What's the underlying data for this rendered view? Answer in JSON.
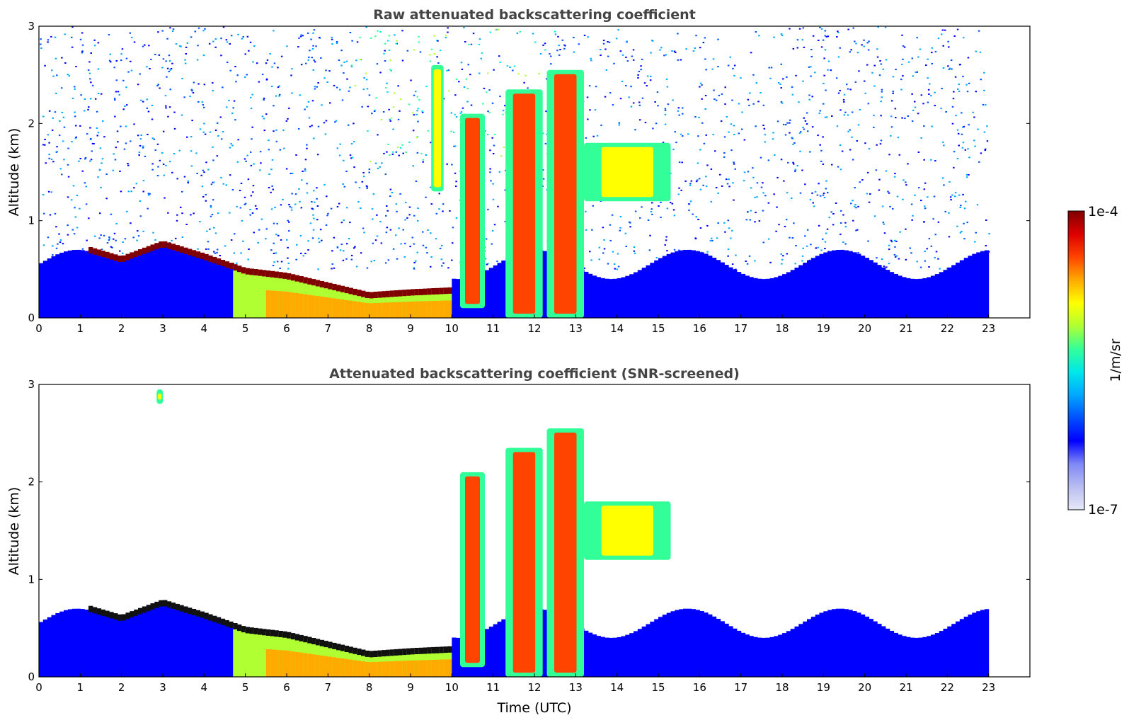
{
  "chart_data": [
    {
      "type": "heatmap",
      "title": "Raw attenuated backscattering coefficient",
      "xlabel": "",
      "ylabel": "Altitude (km)",
      "xlim": [
        0,
        24
      ],
      "ylim": [
        0,
        3
      ],
      "xticks": [
        "0",
        "1",
        "2",
        "3",
        "4",
        "5",
        "6",
        "7",
        "8",
        "9",
        "10",
        "11",
        "12",
        "13",
        "14",
        "15",
        "16",
        "17",
        "18",
        "19",
        "20",
        "21",
        "22",
        "23"
      ],
      "yticks": [
        "0",
        "1",
        "2",
        "3"
      ],
      "data_end_time": 23,
      "layers": [
        {
          "feature": "noise_background",
          "x_range": [
            0,
            23
          ],
          "alt_range": [
            0.5,
            3
          ],
          "level": "low, speckled (blue-cyan; green-yellow near 8-12 UTC)"
        },
        {
          "feature": "boundary_layer",
          "x_range": [
            0,
            23
          ],
          "alt_range": [
            0,
            0.7
          ],
          "level": "low-moderate (blue)"
        },
        {
          "feature": "aerosol_layer_top",
          "x_range": [
            1.2,
            10
          ],
          "alt_top_km": [
            [
              1.2,
              0.72
            ],
            [
              2,
              0.62
            ],
            [
              3,
              0.78
            ],
            [
              4,
              0.65
            ],
            [
              5,
              0.5
            ],
            [
              6,
              0.45
            ],
            [
              7,
              0.35
            ],
            [
              8,
              0.25
            ],
            [
              9,
              0.28
            ],
            [
              10,
              0.3
            ]
          ],
          "level": "high (dark red)"
        },
        {
          "feature": "enhanced_aerosol",
          "x_range": [
            5,
            10
          ],
          "alt_range": [
            0,
            0.5
          ],
          "level": "moderate (yellow-orange)"
        },
        {
          "feature": "cloud_column",
          "x_range": [
            10.2,
            10.8
          ],
          "alt_range": [
            0.1,
            2.1
          ],
          "level": "high"
        },
        {
          "feature": "cloud_column",
          "x_range": [
            11.3,
            12.2
          ],
          "alt_range": [
            0,
            2.35
          ],
          "level": "high"
        },
        {
          "feature": "cloud_column",
          "x_range": [
            12.3,
            13.2
          ],
          "alt_range": [
            0,
            2.55
          ],
          "level": "high"
        },
        {
          "feature": "cloud_layer",
          "x_range": [
            13.2,
            15.3
          ],
          "alt_range": [
            1.2,
            1.8
          ],
          "level": "moderate-high"
        },
        {
          "feature": "thin_cloud",
          "x_range": [
            9.5,
            9.8
          ],
          "alt_range": [
            1.3,
            2.6
          ],
          "level": "moderate-high"
        }
      ]
    },
    {
      "type": "heatmap",
      "title": "Attenuated backscattering coefficient (SNR-screened)",
      "xlabel": "Time (UTC)",
      "ylabel": "Altitude (km)",
      "xlim": [
        0,
        24
      ],
      "ylim": [
        0,
        3
      ],
      "xticks": [
        "0",
        "1",
        "2",
        "3",
        "4",
        "5",
        "6",
        "7",
        "8",
        "9",
        "10",
        "11",
        "12",
        "13",
        "14",
        "15",
        "16",
        "17",
        "18",
        "19",
        "20",
        "21",
        "22",
        "23"
      ],
      "yticks": [
        "0",
        "1",
        "2",
        "3"
      ],
      "data_end_time": 23,
      "screening": "low signal-to-noise pixels removed (white); saturated pixels shown black",
      "layers": [
        {
          "feature": "boundary_layer",
          "x_range": [
            0,
            23
          ],
          "alt_range": [
            0,
            0.7
          ],
          "level": "low-moderate (blue)"
        },
        {
          "feature": "aerosol_layer_top",
          "x_range": [
            1.2,
            10
          ],
          "alt_top_km": [
            [
              1.2,
              0.72
            ],
            [
              2,
              0.62
            ],
            [
              3,
              0.78
            ],
            [
              4,
              0.65
            ],
            [
              5,
              0.5
            ],
            [
              6,
              0.45
            ],
            [
              7,
              0.35
            ],
            [
              8,
              0.25
            ],
            [
              9,
              0.28
            ],
            [
              10,
              0.3
            ]
          ],
          "level": "high (black core)"
        },
        {
          "feature": "cloud_column",
          "x_range": [
            10.2,
            10.8
          ],
          "alt_range": [
            0.1,
            2.1
          ],
          "level": "high"
        },
        {
          "feature": "cloud_column",
          "x_range": [
            11.3,
            12.2
          ],
          "alt_range": [
            0,
            2.35
          ],
          "level": "high"
        },
        {
          "feature": "cloud_column",
          "x_range": [
            12.3,
            13.2
          ],
          "alt_range": [
            0,
            2.55
          ],
          "level": "high"
        },
        {
          "feature": "cloud_layer",
          "x_range": [
            13.2,
            15.3
          ],
          "alt_range": [
            1.2,
            1.8
          ],
          "level": "moderate-high"
        },
        {
          "feature": "small_patch",
          "x_range": [
            2.85,
            3.0
          ],
          "alt_range": [
            2.8,
            2.95
          ],
          "level": "moderate"
        }
      ]
    }
  ],
  "colorbar": {
    "label": "1/m/sr",
    "max_label": "1e-4",
    "min_label": "1e-7",
    "scale": "log",
    "range": [
      1e-07,
      0.0001
    ],
    "colormap": [
      "#e6e8f8",
      "#b8bdf0",
      "#7f88f5",
      "#0000ff",
      "#0050ff",
      "#00a8ff",
      "#00e8e8",
      "#33ff99",
      "#b0ff33",
      "#ffff00",
      "#ffaa00",
      "#ff4400",
      "#dd0000",
      "#800000"
    ]
  }
}
